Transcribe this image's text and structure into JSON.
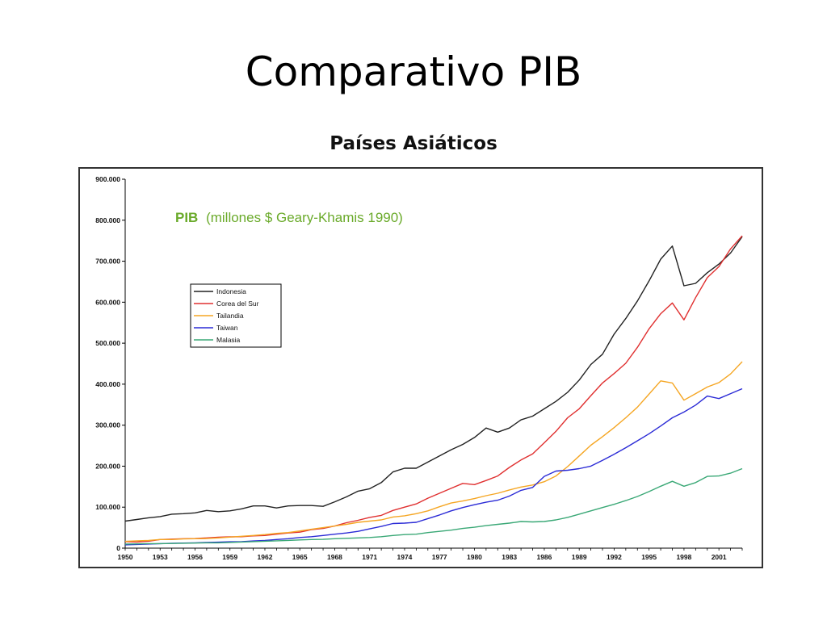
{
  "slide": {
    "title": "Comparativo PIB",
    "subtitle": "Países Asiáticos"
  },
  "chart_data": {
    "type": "line",
    "title_bold": "PIB",
    "title_rest": "(millones $ Geary-Khamis 1990)",
    "title_color": "#6aaa2a",
    "xlabel": "",
    "ylabel": "",
    "x_range": [
      1950,
      2003
    ],
    "ylim": [
      0,
      900000
    ],
    "y_ticks": [
      0,
      100000,
      200000,
      300000,
      400000,
      500000,
      600000,
      700000,
      800000,
      900000
    ],
    "y_tick_labels": [
      "0",
      "100.000",
      "200.000",
      "300.000",
      "400.000",
      "500.000",
      "600.000",
      "700.000",
      "800.000",
      "900.000"
    ],
    "x_ticks": [
      1950,
      1953,
      1956,
      1959,
      1962,
      1965,
      1968,
      1971,
      1974,
      1977,
      1980,
      1983,
      1986,
      1989,
      1992,
      1995,
      1998,
      2001
    ],
    "x_tick_labels": [
      "1950",
      "1953",
      "1956",
      "1959",
      "1962",
      "1965",
      "1968",
      "1971",
      "1974",
      "1977",
      "1980",
      "1983",
      "1986",
      "1989",
      "1992",
      "1995",
      "1998",
      "2001"
    ],
    "grid": false,
    "legend_position": "upper-left",
    "series": [
      {
        "name": "Indonesia",
        "color": "#222222",
        "points": [
          [
            1950,
            66000
          ],
          [
            1951,
            70000
          ],
          [
            1952,
            74000
          ],
          [
            1953,
            77000
          ],
          [
            1954,
            83000
          ],
          [
            1955,
            84000
          ],
          [
            1956,
            86000
          ],
          [
            1957,
            92000
          ],
          [
            1958,
            89000
          ],
          [
            1959,
            91000
          ],
          [
            1960,
            96000
          ],
          [
            1961,
            103000
          ],
          [
            1962,
            103000
          ],
          [
            1963,
            98000
          ],
          [
            1964,
            103000
          ],
          [
            1965,
            104000
          ],
          [
            1966,
            104000
          ],
          [
            1967,
            102000
          ],
          [
            1968,
            113000
          ],
          [
            1969,
            125000
          ],
          [
            1970,
            139000
          ],
          [
            1971,
            145000
          ],
          [
            1972,
            160000
          ],
          [
            1973,
            186000
          ],
          [
            1974,
            195000
          ],
          [
            1975,
            195000
          ],
          [
            1976,
            210000
          ],
          [
            1977,
            225000
          ],
          [
            1978,
            240000
          ],
          [
            1979,
            253000
          ],
          [
            1980,
            270000
          ],
          [
            1981,
            293000
          ],
          [
            1982,
            283000
          ],
          [
            1983,
            293000
          ],
          [
            1984,
            313000
          ],
          [
            1985,
            322000
          ],
          [
            1986,
            340000
          ],
          [
            1987,
            358000
          ],
          [
            1988,
            380000
          ],
          [
            1989,
            410000
          ],
          [
            1990,
            448000
          ],
          [
            1991,
            473000
          ],
          [
            1992,
            522000
          ],
          [
            1993,
            560000
          ],
          [
            1994,
            603000
          ],
          [
            1995,
            652000
          ],
          [
            1996,
            705000
          ],
          [
            1997,
            737000
          ],
          [
            1998,
            640000
          ],
          [
            1999,
            646000
          ],
          [
            2000,
            672000
          ],
          [
            2001,
            693000
          ],
          [
            2002,
            720000
          ],
          [
            2003,
            760000
          ]
        ]
      },
      {
        "name": "Corea del Sur",
        "color": "#e03030",
        "points": [
          [
            1950,
            16000
          ],
          [
            1951,
            15000
          ],
          [
            1952,
            17000
          ],
          [
            1953,
            21000
          ],
          [
            1954,
            22000
          ],
          [
            1955,
            23000
          ],
          [
            1956,
            23500
          ],
          [
            1957,
            25000
          ],
          [
            1958,
            26500
          ],
          [
            1959,
            27500
          ],
          [
            1960,
            28000
          ],
          [
            1961,
            30000
          ],
          [
            1962,
            31000
          ],
          [
            1963,
            34000
          ],
          [
            1964,
            37000
          ],
          [
            1965,
            39000
          ],
          [
            1966,
            45000
          ],
          [
            1967,
            48000
          ],
          [
            1968,
            54000
          ],
          [
            1969,
            62000
          ],
          [
            1970,
            68000
          ],
          [
            1971,
            75000
          ],
          [
            1972,
            80000
          ],
          [
            1973,
            92000
          ],
          [
            1974,
            100000
          ],
          [
            1975,
            108000
          ],
          [
            1976,
            122000
          ],
          [
            1977,
            134000
          ],
          [
            1978,
            146000
          ],
          [
            1979,
            158000
          ],
          [
            1980,
            155000
          ],
          [
            1981,
            165000
          ],
          [
            1982,
            176000
          ],
          [
            1983,
            197000
          ],
          [
            1984,
            215000
          ],
          [
            1985,
            230000
          ],
          [
            1986,
            257000
          ],
          [
            1987,
            285000
          ],
          [
            1988,
            318000
          ],
          [
            1989,
            340000
          ],
          [
            1990,
            372000
          ],
          [
            1991,
            403000
          ],
          [
            1992,
            426000
          ],
          [
            1993,
            451000
          ],
          [
            1994,
            490000
          ],
          [
            1995,
            535000
          ],
          [
            1996,
            572000
          ],
          [
            1997,
            598000
          ],
          [
            1998,
            557000
          ],
          [
            1999,
            611000
          ],
          [
            2000,
            660000
          ],
          [
            2001,
            687000
          ],
          [
            2002,
            730000
          ],
          [
            2003,
            762000
          ]
        ]
      },
      {
        "name": "Tailandia",
        "color": "#f5a623",
        "points": [
          [
            1950,
            16500
          ],
          [
            1951,
            18000
          ],
          [
            1952,
            19000
          ],
          [
            1953,
            21000
          ],
          [
            1954,
            21000
          ],
          [
            1955,
            22500
          ],
          [
            1956,
            23000
          ],
          [
            1957,
            23500
          ],
          [
            1958,
            25000
          ],
          [
            1959,
            27000
          ],
          [
            1960,
            29000
          ],
          [
            1961,
            31000
          ],
          [
            1962,
            33000
          ],
          [
            1963,
            36000
          ],
          [
            1964,
            38000
          ],
          [
            1965,
            42000
          ],
          [
            1966,
            46000
          ],
          [
            1967,
            50000
          ],
          [
            1968,
            54000
          ],
          [
            1969,
            58000
          ],
          [
            1970,
            63000
          ],
          [
            1971,
            66000
          ],
          [
            1972,
            69000
          ],
          [
            1973,
            76000
          ],
          [
            1974,
            79000
          ],
          [
            1975,
            84000
          ],
          [
            1976,
            91000
          ],
          [
            1977,
            101000
          ],
          [
            1978,
            110000
          ],
          [
            1979,
            115000
          ],
          [
            1980,
            121000
          ],
          [
            1981,
            128000
          ],
          [
            1982,
            134000
          ],
          [
            1983,
            142000
          ],
          [
            1984,
            149000
          ],
          [
            1985,
            154000
          ],
          [
            1986,
            162000
          ],
          [
            1987,
            176000
          ],
          [
            1988,
            199000
          ],
          [
            1989,
            225000
          ],
          [
            1990,
            251000
          ],
          [
            1991,
            272000
          ],
          [
            1992,
            294000
          ],
          [
            1993,
            318000
          ],
          [
            1994,
            344000
          ],
          [
            1995,
            376000
          ],
          [
            1996,
            408000
          ],
          [
            1997,
            403000
          ],
          [
            1998,
            361000
          ],
          [
            1999,
            377000
          ],
          [
            2000,
            393000
          ],
          [
            2001,
            404000
          ],
          [
            2002,
            425000
          ],
          [
            2003,
            455000
          ]
        ]
      },
      {
        "name": "Taiwan",
        "color": "#2b2bd6",
        "points": [
          [
            1950,
            8000
          ],
          [
            1951,
            9000
          ],
          [
            1952,
            10000
          ],
          [
            1953,
            11000
          ],
          [
            1954,
            12000
          ],
          [
            1955,
            12500
          ],
          [
            1956,
            13000
          ],
          [
            1957,
            14000
          ],
          [
            1958,
            14500
          ],
          [
            1959,
            15500
          ],
          [
            1960,
            16000
          ],
          [
            1961,
            17500
          ],
          [
            1962,
            19000
          ],
          [
            1963,
            21000
          ],
          [
            1964,
            23000
          ],
          [
            1965,
            26000
          ],
          [
            1966,
            28000
          ],
          [
            1967,
            31000
          ],
          [
            1968,
            34000
          ],
          [
            1969,
            37000
          ],
          [
            1970,
            41000
          ],
          [
            1971,
            47000
          ],
          [
            1972,
            53000
          ],
          [
            1973,
            60000
          ],
          [
            1974,
            61000
          ],
          [
            1975,
            63000
          ],
          [
            1976,
            72000
          ],
          [
            1977,
            81000
          ],
          [
            1978,
            91000
          ],
          [
            1979,
            99000
          ],
          [
            1980,
            106000
          ],
          [
            1981,
            112000
          ],
          [
            1982,
            117000
          ],
          [
            1983,
            127000
          ],
          [
            1984,
            141000
          ],
          [
            1985,
            148000
          ],
          [
            1986,
            175000
          ],
          [
            1987,
            188000
          ],
          [
            1988,
            190000
          ],
          [
            1989,
            194000
          ],
          [
            1990,
            200000
          ],
          [
            1991,
            214000
          ],
          [
            1992,
            229000
          ],
          [
            1993,
            245000
          ],
          [
            1994,
            262000
          ],
          [
            1995,
            279000
          ],
          [
            1996,
            298000
          ],
          [
            1997,
            318000
          ],
          [
            1998,
            332000
          ],
          [
            1999,
            349000
          ],
          [
            2000,
            371000
          ],
          [
            2001,
            365000
          ],
          [
            2002,
            377000
          ],
          [
            2003,
            389000
          ]
        ]
      },
      {
        "name": "Malasia",
        "color": "#3aa876",
        "points": [
          [
            1950,
            10000
          ],
          [
            1951,
            10500
          ],
          [
            1952,
            11000
          ],
          [
            1953,
            11000
          ],
          [
            1954,
            11500
          ],
          [
            1955,
            12000
          ],
          [
            1956,
            12500
          ],
          [
            1957,
            13000
          ],
          [
            1958,
            13000
          ],
          [
            1959,
            14000
          ],
          [
            1960,
            15000
          ],
          [
            1961,
            16000
          ],
          [
            1962,
            17000
          ],
          [
            1963,
            18000
          ],
          [
            1964,
            19000
          ],
          [
            1965,
            20000
          ],
          [
            1966,
            21000
          ],
          [
            1967,
            21500
          ],
          [
            1968,
            23000
          ],
          [
            1969,
            24000
          ],
          [
            1970,
            25000
          ],
          [
            1971,
            26000
          ],
          [
            1972,
            28000
          ],
          [
            1973,
            31000
          ],
          [
            1974,
            33000
          ],
          [
            1975,
            34000
          ],
          [
            1976,
            38000
          ],
          [
            1977,
            41000
          ],
          [
            1978,
            44000
          ],
          [
            1979,
            48000
          ],
          [
            1980,
            51000
          ],
          [
            1981,
            55000
          ],
          [
            1982,
            58000
          ],
          [
            1983,
            61000
          ],
          [
            1984,
            65000
          ],
          [
            1985,
            64000
          ],
          [
            1986,
            65000
          ],
          [
            1987,
            69000
          ],
          [
            1988,
            75000
          ],
          [
            1989,
            83000
          ],
          [
            1990,
            91000
          ],
          [
            1991,
            99000
          ],
          [
            1992,
            107000
          ],
          [
            1993,
            116000
          ],
          [
            1994,
            126000
          ],
          [
            1995,
            138000
          ],
          [
            1996,
            151000
          ],
          [
            1997,
            163000
          ],
          [
            1998,
            151000
          ],
          [
            1999,
            160000
          ],
          [
            2000,
            175000
          ],
          [
            2001,
            176000
          ],
          [
            2002,
            183000
          ],
          [
            2003,
            194000
          ]
        ]
      }
    ]
  }
}
